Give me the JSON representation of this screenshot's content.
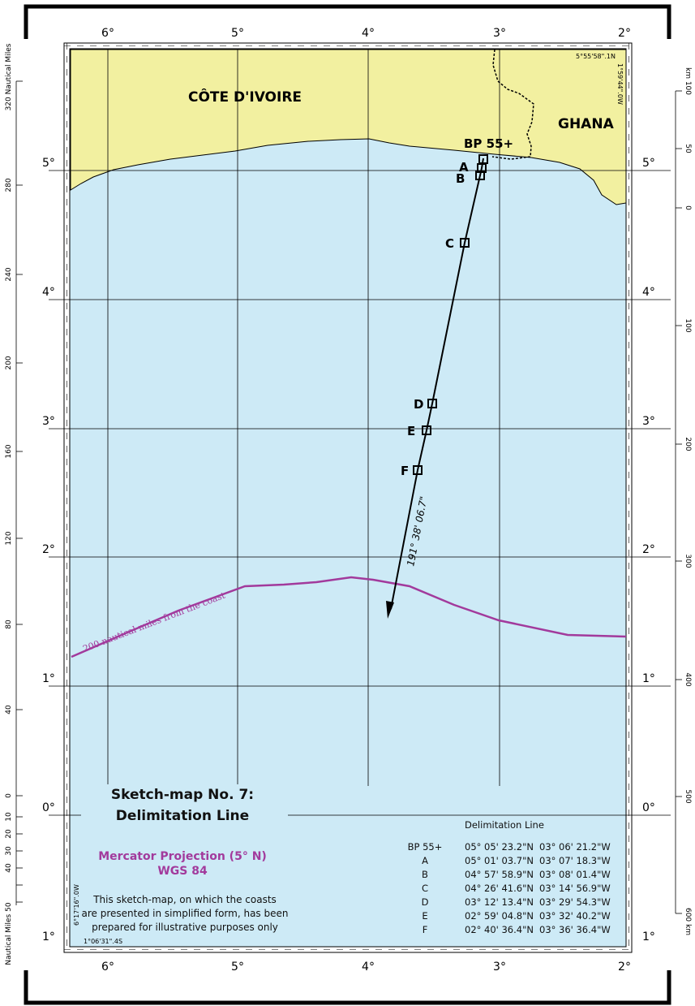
{
  "map": {
    "countries": {
      "left": "CÔTE D'IVOIRE",
      "right": "GHANA"
    },
    "top_coord": "5°55'58\".1N",
    "right_top_coord": "1°59'44\".0W",
    "left_bottom_coord": "6°17'16\".0W",
    "bottom_left_coord": "1°06'31\".4S",
    "lon_labels": [
      "6°",
      "5°",
      "4°",
      "3°",
      "2°"
    ],
    "lat_labels": [
      "5°",
      "4°",
      "3°",
      "2°",
      "1°",
      "0°",
      "1°"
    ],
    "nm_ticks": [
      "320 Nautical Miles",
      "280",
      "240",
      "200",
      "160",
      "120",
      "80",
      "40",
      "0",
      "10",
      "20",
      "30",
      "40",
      "Nautical Miles 50"
    ],
    "km_ticks": [
      "km 100",
      "50",
      "0",
      "100",
      "200",
      "300",
      "400",
      "500",
      "600 km"
    ],
    "points": [
      {
        "label": "BP 55+"
      },
      {
        "label": "A"
      },
      {
        "label": "B"
      },
      {
        "label": "C"
      },
      {
        "label": "D"
      },
      {
        "label": "E"
      },
      {
        "label": "F"
      }
    ],
    "bearing_label": "191° 38' 06.7\"",
    "limit_label": "200 nautical miles from the coast",
    "colors": {
      "sea": "#cdeaf6",
      "land": "#f2f0a0",
      "limit": "#a23a9c",
      "line": "#000000"
    }
  },
  "title": {
    "line1": "Sketch-map No. 7:",
    "line2": "Delimitation Line"
  },
  "projection": {
    "line1": "Mercator Projection (5° N)",
    "line2": "WGS 84"
  },
  "note": {
    "line1": "This sketch-map, on which the coasts",
    "line2": "are presented in simplified form, has been",
    "line3": "prepared for illustrative purposes only"
  },
  "table": {
    "heading": "Delimitation Line",
    "rows": [
      {
        "point": "BP 55+",
        "lat": "05° 05' 23.2\"N",
        "lon": "03° 06' 21.2\"W"
      },
      {
        "point": "A",
        "lat": "05° 01' 03.7\"N",
        "lon": "03° 07' 18.3\"W"
      },
      {
        "point": "B",
        "lat": "04° 57' 58.9\"N",
        "lon": "03° 08' 01.4\"W"
      },
      {
        "point": "C",
        "lat": "04° 26' 41.6\"N",
        "lon": "03° 14' 56.9\"W"
      },
      {
        "point": "D",
        "lat": "03° 12' 13.4\"N",
        "lon": "03° 29' 54.3\"W"
      },
      {
        "point": "E",
        "lat": "02° 59' 04.8\"N",
        "lon": "03° 32' 40.2\"W"
      },
      {
        "point": "F",
        "lat": "02° 40' 36.4\"N",
        "lon": "03° 36' 36.4\"W"
      }
    ]
  }
}
